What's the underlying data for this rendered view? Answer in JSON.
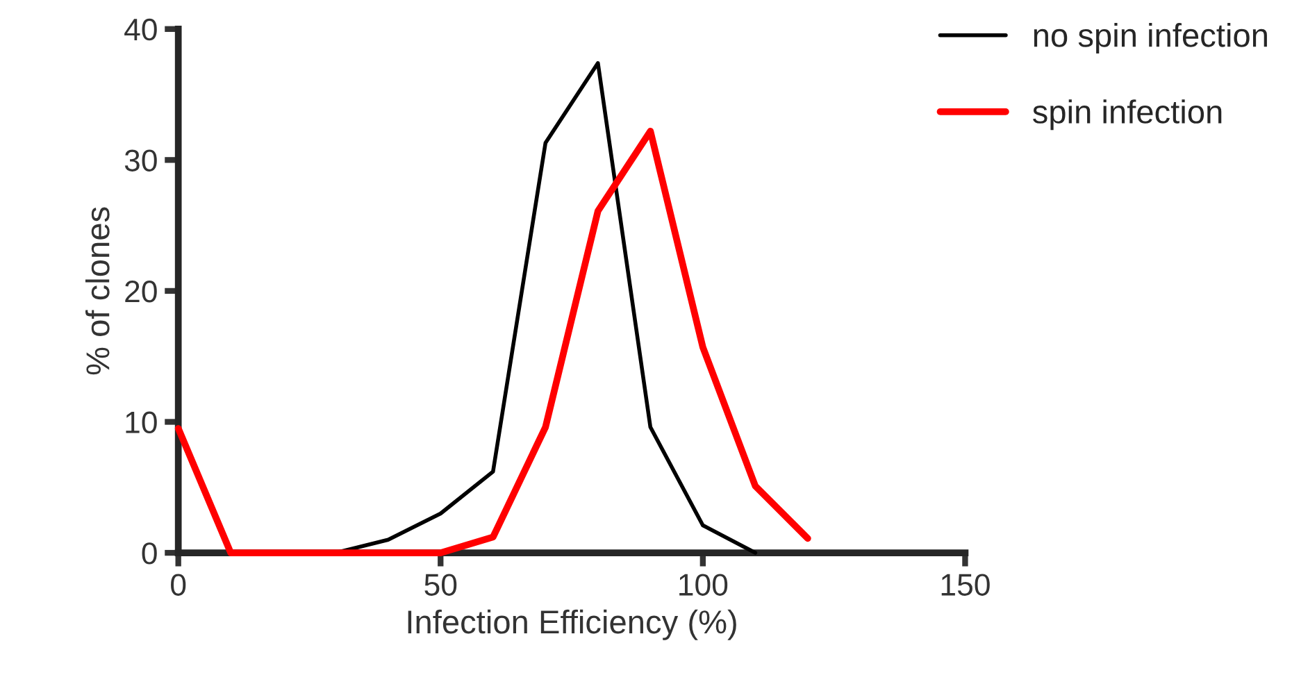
{
  "chart_data": {
    "type": "line",
    "xlabel": "Infection Efficiency (%)",
    "ylabel": "% of clones",
    "xlim": [
      0,
      150
    ],
    "xticks": [
      0,
      50,
      100,
      150
    ],
    "ylim": [
      0,
      40
    ],
    "yticks": [
      0,
      10,
      20,
      30,
      40
    ],
    "grid": false,
    "legend": "top right",
    "marker": "none",
    "line_style": "solid",
    "series": [
      {
        "name": "no spin infection",
        "color": "#000000",
        "x": [
          30,
          40,
          50,
          60,
          70,
          80,
          90,
          100,
          110
        ],
        "values": [
          0,
          1,
          3,
          6.2,
          31.3,
          37.4,
          9.6,
          2.1,
          0
        ]
      },
      {
        "name": "spin infection",
        "color": "#ff0000",
        "x": [
          0,
          10,
          20,
          30,
          40,
          50,
          60,
          70,
          80,
          90,
          100,
          110,
          120
        ],
        "values": [
          9.5,
          0,
          0,
          0,
          0,
          0,
          1.2,
          9.6,
          26.1,
          32.2,
          15.7,
          5.1,
          1.1
        ]
      }
    ]
  }
}
